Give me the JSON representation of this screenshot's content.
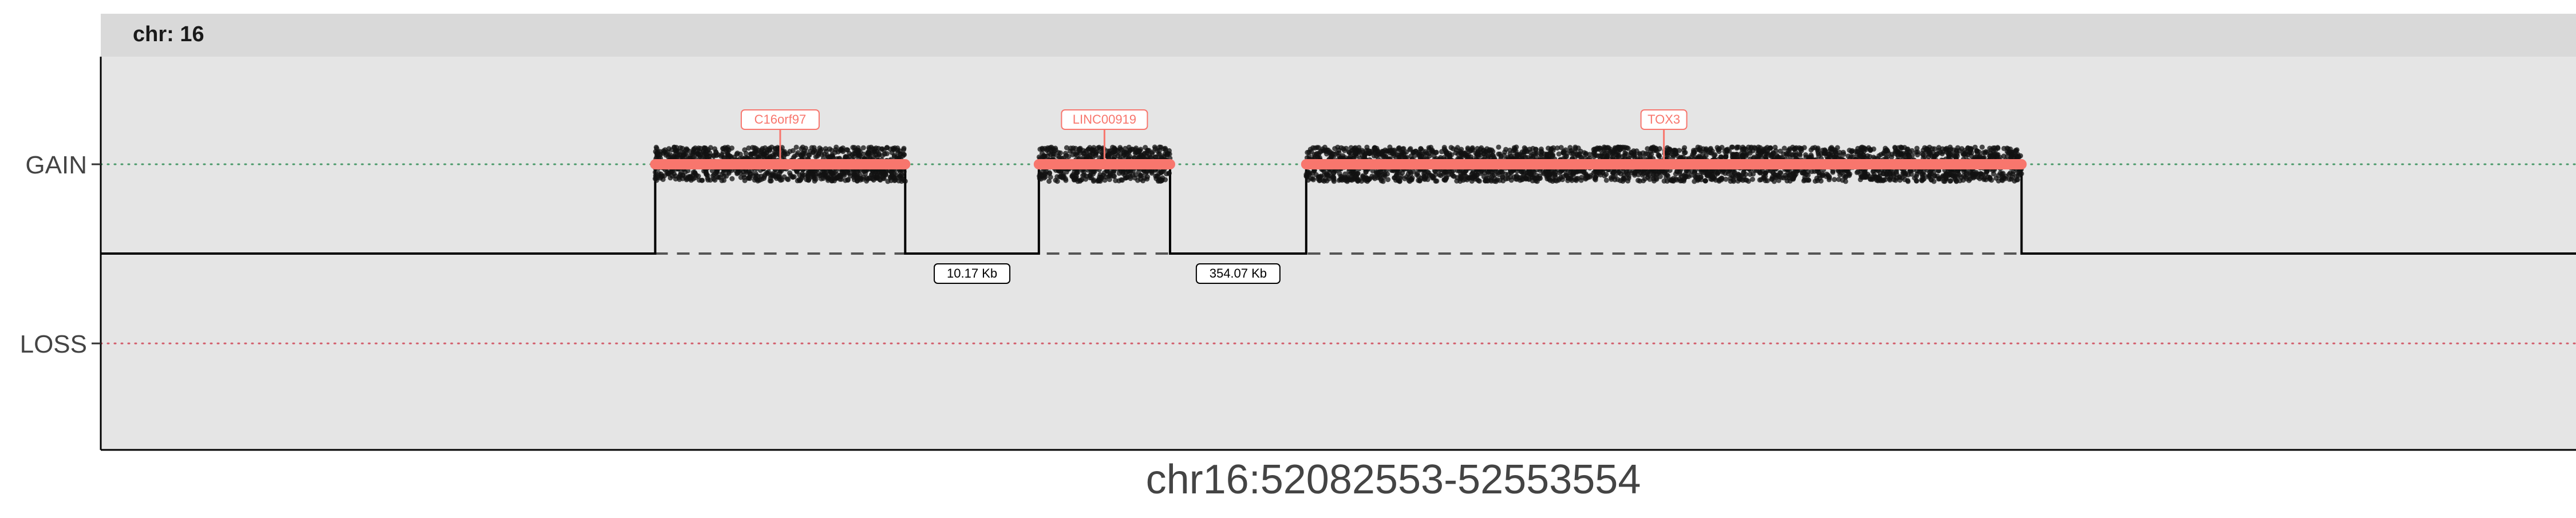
{
  "chart_data": {
    "type": "scatter",
    "panel_title": "chr: 16",
    "xlabel": "chr16:52082553-52553554",
    "ylabel": "",
    "y_categories": [
      "GAIN",
      "LOSS"
    ],
    "grid": false,
    "legend": "none",
    "colors": {
      "panel_bg": "#e5e5e5",
      "strip_bg": "#d9d9d9",
      "segment": "#f8766d",
      "points": "#111111",
      "gain_line": "#4a9a6a",
      "loss_line": "#d25c6a",
      "baseline": "#000000",
      "axis_text": "#444444"
    },
    "segments": [
      {
        "state": "GAIN",
        "gene": "C16orf97",
        "x_start": 0.224,
        "x_end": 0.325
      },
      {
        "state": "GAIN",
        "gene": "LINC00919",
        "x_start": 0.379,
        "x_end": 0.432
      },
      {
        "state": "GAIN",
        "gene": "TOX3",
        "x_start": 0.487,
        "x_end": 0.776
      }
    ],
    "gaps": [
      {
        "label": "10.17 Kb",
        "x_start": 0.325,
        "x_end": 0.379
      },
      {
        "label": "354.07 Kb",
        "x_start": 0.432,
        "x_end": 0.487
      }
    ]
  }
}
